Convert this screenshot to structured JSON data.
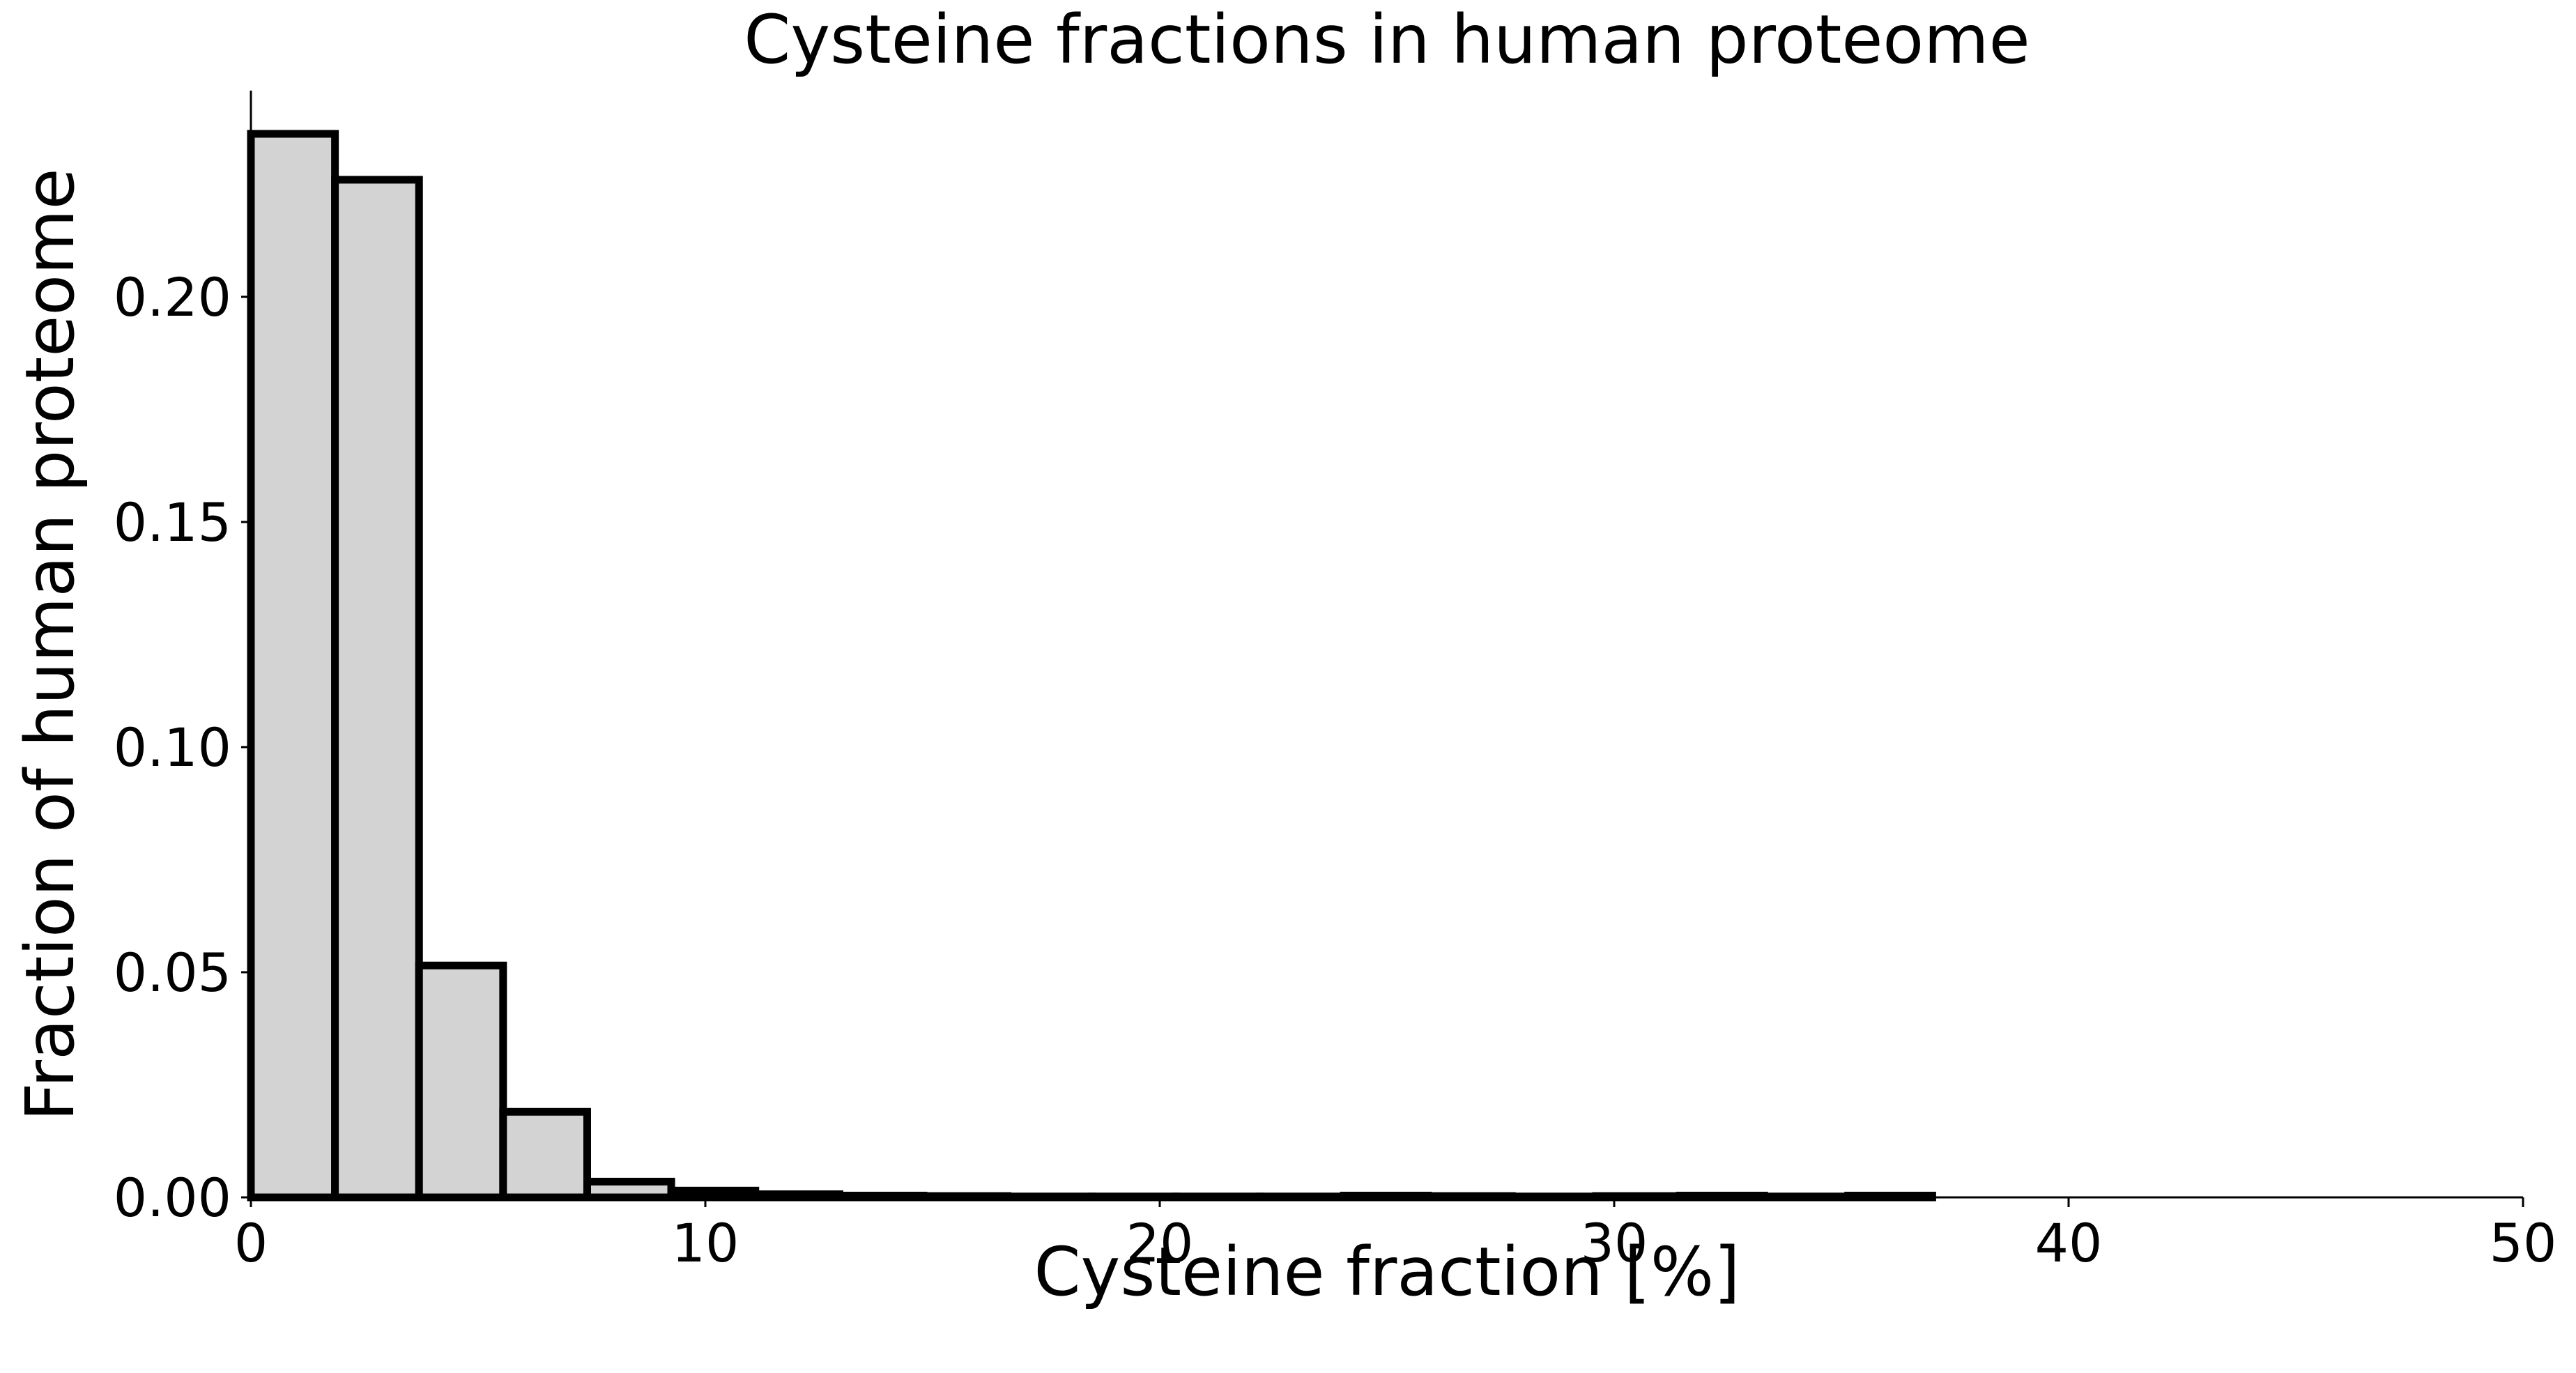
{
  "chart_data": {
    "type": "bar",
    "title": "Cysteine fractions in human proteome",
    "xlabel": "Cysteine fraction [%]",
    "ylabel": "Fraction of human proteome",
    "xlim": [
      0,
      50
    ],
    "ylim": [
      0,
      0.2458
    ],
    "x_ticks": [
      "0",
      "10",
      "20",
      "30",
      "40",
      "50"
    ],
    "x_tick_values": [
      0,
      10,
      20,
      30,
      40,
      50
    ],
    "y_ticks": [
      "0.00",
      "0.05",
      "0.10",
      "0.15",
      "0.20"
    ],
    "y_tick_values": [
      0,
      0.05,
      0.1,
      0.15,
      0.2
    ],
    "bin_edges": [
      0,
      1.85,
      3.7,
      5.55,
      7.4,
      9.25,
      11.1,
      12.95,
      14.8,
      16.65,
      18.5,
      20.35,
      22.2,
      24.05,
      25.9,
      27.75,
      29.6,
      31.45,
      33.3,
      35.15,
      37.0
    ],
    "values": [
      0.2362,
      0.226,
      0.0515,
      0.019,
      0.0035,
      0.0015,
      0.0007,
      0.0004,
      0.0003,
      0.0002,
      0.0002,
      0.0002,
      0.0002,
      0.0004,
      0.0003,
      0.0002,
      0.0003,
      0.0004,
      0.0002,
      0.0004
    ],
    "grid": false,
    "bar_color": "#d3d3d3",
    "edge_color": "#000000"
  }
}
